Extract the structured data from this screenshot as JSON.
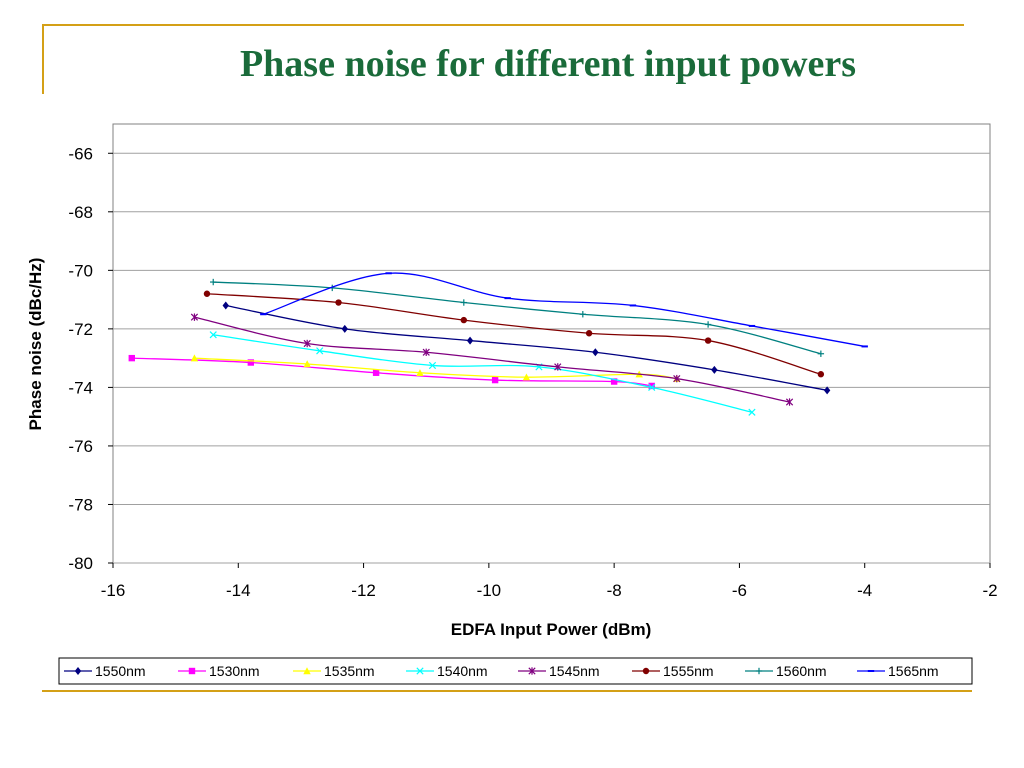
{
  "slide": {
    "title": "Phase noise for different input powers"
  },
  "chart_data": {
    "type": "line",
    "title": "Phase noise for different input powers",
    "xlabel": "EDFA Input Power (dBm)",
    "ylabel": "Phase noise (dBc/Hz)",
    "xlim": [
      -16,
      -2
    ],
    "ylim": [
      -80,
      -65
    ],
    "xticks": [
      -16,
      -14,
      -12,
      -10,
      -8,
      -6,
      -4,
      -2
    ],
    "yticks": [
      -66,
      -68,
      -70,
      -72,
      -74,
      -76,
      -78,
      -80
    ],
    "grid": "horizontal",
    "legend": "bottom",
    "series": [
      {
        "name": "1550nm",
        "color": "#000080",
        "marker": "diamond",
        "points": [
          [
            -14.2,
            -71.2
          ],
          [
            -12.3,
            -72.0
          ],
          [
            -10.3,
            -72.4
          ],
          [
            -8.3,
            -72.8
          ],
          [
            -6.4,
            -73.4
          ],
          [
            -4.6,
            -74.1
          ]
        ]
      },
      {
        "name": "1530nm",
        "color": "#ff00ff",
        "marker": "square",
        "points": [
          [
            -15.7,
            -73.0
          ],
          [
            -13.8,
            -73.15
          ],
          [
            -11.8,
            -73.5
          ],
          [
            -9.9,
            -73.75
          ],
          [
            -8.0,
            -73.8
          ],
          [
            -7.4,
            -73.95
          ]
        ]
      },
      {
        "name": "1535nm",
        "color": "#ffff00",
        "marker": "triangle",
        "points": [
          [
            -14.7,
            -73.0
          ],
          [
            -12.9,
            -73.2
          ],
          [
            -11.1,
            -73.5
          ],
          [
            -9.4,
            -73.65
          ],
          [
            -7.6,
            -73.55
          ],
          [
            -7.0,
            -73.7
          ]
        ]
      },
      {
        "name": "1540nm",
        "color": "#00ffff",
        "marker": "x",
        "points": [
          [
            -14.4,
            -72.2
          ],
          [
            -12.7,
            -72.75
          ],
          [
            -10.9,
            -73.25
          ],
          [
            -9.2,
            -73.3
          ],
          [
            -7.4,
            -74.0
          ],
          [
            -5.8,
            -74.85
          ]
        ]
      },
      {
        "name": "1545nm",
        "color": "#800080",
        "marker": "star",
        "points": [
          [
            -14.7,
            -71.6
          ],
          [
            -12.9,
            -72.5
          ],
          [
            -11.0,
            -72.8
          ],
          [
            -8.9,
            -73.3
          ],
          [
            -7.0,
            -73.7
          ],
          [
            -5.2,
            -74.5
          ]
        ]
      },
      {
        "name": "1555nm",
        "color": "#800000",
        "marker": "circle",
        "points": [
          [
            -14.5,
            -70.8
          ],
          [
            -12.4,
            -71.1
          ],
          [
            -10.4,
            -71.7
          ],
          [
            -8.4,
            -72.15
          ],
          [
            -6.5,
            -72.4
          ],
          [
            -4.7,
            -73.55
          ]
        ]
      },
      {
        "name": "1560nm",
        "color": "#008080",
        "marker": "plus",
        "points": [
          [
            -14.4,
            -70.4
          ],
          [
            -12.5,
            -70.6
          ],
          [
            -10.4,
            -71.1
          ],
          [
            -8.5,
            -71.5
          ],
          [
            -6.5,
            -71.85
          ],
          [
            -4.7,
            -72.85
          ]
        ]
      },
      {
        "name": "1565nm",
        "color": "#0000ff",
        "marker": "dash",
        "points": [
          [
            -13.6,
            -71.5
          ],
          [
            -11.6,
            -70.1
          ],
          [
            -9.7,
            -70.95
          ],
          [
            -7.7,
            -71.2
          ],
          [
            -5.8,
            -71.9
          ],
          [
            -4.0,
            -72.6
          ]
        ]
      }
    ]
  }
}
